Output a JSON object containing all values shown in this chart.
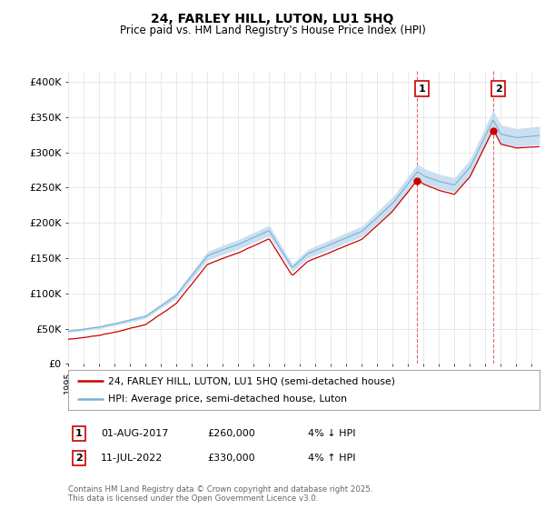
{
  "title1": "24, FARLEY HILL, LUTON, LU1 5HQ",
  "title2": "Price paid vs. HM Land Registry's House Price Index (HPI)",
  "ylabel_ticks": [
    "£0",
    "£50K",
    "£100K",
    "£150K",
    "£200K",
    "£250K",
    "£300K",
    "£350K",
    "£400K"
  ],
  "ytick_values": [
    0,
    50000,
    100000,
    150000,
    200000,
    250000,
    300000,
    350000,
    400000
  ],
  "ylim": [
    0,
    415000
  ],
  "xlim_start": 1995.0,
  "xlim_end": 2025.5,
  "marker1_x": 2017.58,
  "marker1_y": 260000,
  "marker2_x": 2022.53,
  "marker2_y": 330000,
  "legend_label_red": "24, FARLEY HILL, LUTON, LU1 5HQ (semi-detached house)",
  "legend_label_blue": "HPI: Average price, semi-detached house, Luton",
  "table_row1": [
    "1",
    "01-AUG-2017",
    "£260,000",
    "4% ↓ HPI"
  ],
  "table_row2": [
    "2",
    "11-JUL-2022",
    "£330,000",
    "4% ↑ HPI"
  ],
  "footnote": "Contains HM Land Registry data © Crown copyright and database right 2025.\nThis data is licensed under the Open Government Licence v3.0.",
  "red_color": "#cc0000",
  "blue_fill_color": "#c5ddf0",
  "blue_line_color": "#7ab0d4",
  "background_color": "#ffffff",
  "grid_color": "#e0e0e0",
  "vline_color": "#cc0000"
}
